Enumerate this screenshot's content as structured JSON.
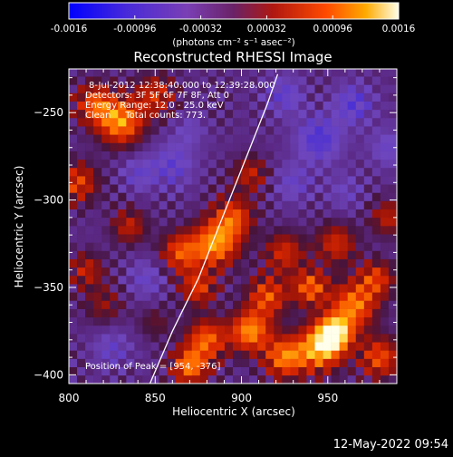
{
  "chart_data": {
    "type": "heatmap",
    "title": "Reconstructed RHESSI Image",
    "xlabel": "Heliocentric X (arcsec)",
    "ylabel": "Heliocentric Y (arcsec)",
    "xlim": [
      800,
      990
    ],
    "ylim": [
      -405,
      -225
    ],
    "xticks": [
      800,
      850,
      900,
      950
    ],
    "yticks": [
      -250,
      -300,
      -350,
      -400
    ],
    "annotations": [
      "8-Jul-2012 12:38:40.000 to 12:39:28.000",
      "Detectors: 3F 5F 6F 7F 8F, Att 0",
      "Energy Range: 12.0 - 25.0 keV",
      "Clean     Total counts: 773.",
      "Position of Peak = [954, -376]"
    ],
    "colorbar": {
      "ticks": [
        "-0.0016",
        "-0.00096",
        "-0.00032",
        "0.00032",
        "0.00096",
        "0.0016"
      ],
      "unit": "(photons cm⁻² s⁻¹ asec⁻²)",
      "range": [
        -0.0016,
        0.0016
      ]
    },
    "limb": {
      "description": "solar limb",
      "points": [
        [
          847,
          -405
        ],
        [
          860,
          -375
        ],
        [
          875,
          -345
        ],
        [
          885,
          -320
        ],
        [
          895,
          -295
        ],
        [
          905,
          -270
        ],
        [
          915,
          -245
        ],
        [
          921,
          -228
        ]
      ]
    },
    "peak": [
      954,
      -376
    ],
    "blobs": [
      {
        "x": 954,
        "y": -376,
        "v": 0.0016,
        "s": 7
      },
      {
        "x": 945,
        "y": -385,
        "v": 0.0013,
        "s": 9
      },
      {
        "x": 965,
        "y": -360,
        "v": 0.0011,
        "s": 9
      },
      {
        "x": 925,
        "y": -390,
        "v": 0.0011,
        "s": 8
      },
      {
        "x": 905,
        "y": -375,
        "v": 0.0012,
        "s": 8
      },
      {
        "x": 880,
        "y": -380,
        "v": 0.001,
        "s": 8
      },
      {
        "x": 870,
        "y": -395,
        "v": 0.0011,
        "s": 7
      },
      {
        "x": 915,
        "y": -355,
        "v": 0.0009,
        "s": 8
      },
      {
        "x": 940,
        "y": -350,
        "v": 0.001,
        "s": 7
      },
      {
        "x": 980,
        "y": -390,
        "v": 0.0009,
        "s": 8
      },
      {
        "x": 978,
        "y": -345,
        "v": 0.0008,
        "s": 7
      },
      {
        "x": 885,
        "y": -325,
        "v": 0.0012,
        "s": 9
      },
      {
        "x": 895,
        "y": -310,
        "v": 0.0009,
        "s": 8
      },
      {
        "x": 865,
        "y": -330,
        "v": 0.0009,
        "s": 8
      },
      {
        "x": 875,
        "y": -350,
        "v": 0.0008,
        "s": 7
      },
      {
        "x": 925,
        "y": -330,
        "v": 0.0007,
        "s": 8
      },
      {
        "x": 955,
        "y": -325,
        "v": 0.0007,
        "s": 8
      },
      {
        "x": 985,
        "y": -310,
        "v": 0.0006,
        "s": 7
      },
      {
        "x": 905,
        "y": -285,
        "v": 0.0006,
        "s": 7
      },
      {
        "x": 830,
        "y": -255,
        "v": 0.0012,
        "s": 9
      },
      {
        "x": 815,
        "y": -245,
        "v": 0.0009,
        "s": 8
      },
      {
        "x": 850,
        "y": -240,
        "v": 0.0007,
        "s": 8
      },
      {
        "x": 805,
        "y": -290,
        "v": 0.0008,
        "s": 8
      },
      {
        "x": 810,
        "y": -340,
        "v": 0.0006,
        "s": 7
      },
      {
        "x": 835,
        "y": -315,
        "v": 0.0006,
        "s": 7
      },
      {
        "x": 820,
        "y": -360,
        "v": 0.0004,
        "s": 8
      },
      {
        "x": 850,
        "y": -370,
        "v": 0.0003,
        "s": 7
      },
      {
        "x": 945,
        "y": -265,
        "v": -0.0007,
        "s": 9
      },
      {
        "x": 925,
        "y": -240,
        "v": -0.0005,
        "s": 8
      },
      {
        "x": 965,
        "y": -245,
        "v": -0.0006,
        "s": 8
      },
      {
        "x": 985,
        "y": -270,
        "v": -0.0004,
        "s": 8
      },
      {
        "x": 930,
        "y": -290,
        "v": -0.0004,
        "s": 8
      },
      {
        "x": 960,
        "y": -295,
        "v": -0.0003,
        "s": 8
      },
      {
        "x": 860,
        "y": -280,
        "v": -0.0005,
        "s": 9
      },
      {
        "x": 840,
        "y": -285,
        "v": -0.0004,
        "s": 7
      },
      {
        "x": 845,
        "y": -345,
        "v": -0.0004,
        "s": 8
      },
      {
        "x": 825,
        "y": -385,
        "v": -0.0004,
        "s": 8
      },
      {
        "x": 870,
        "y": -260,
        "v": -0.0003,
        "s": 7
      }
    ]
  },
  "footer": {
    "timestamp": "12-May-2022 09:54"
  }
}
